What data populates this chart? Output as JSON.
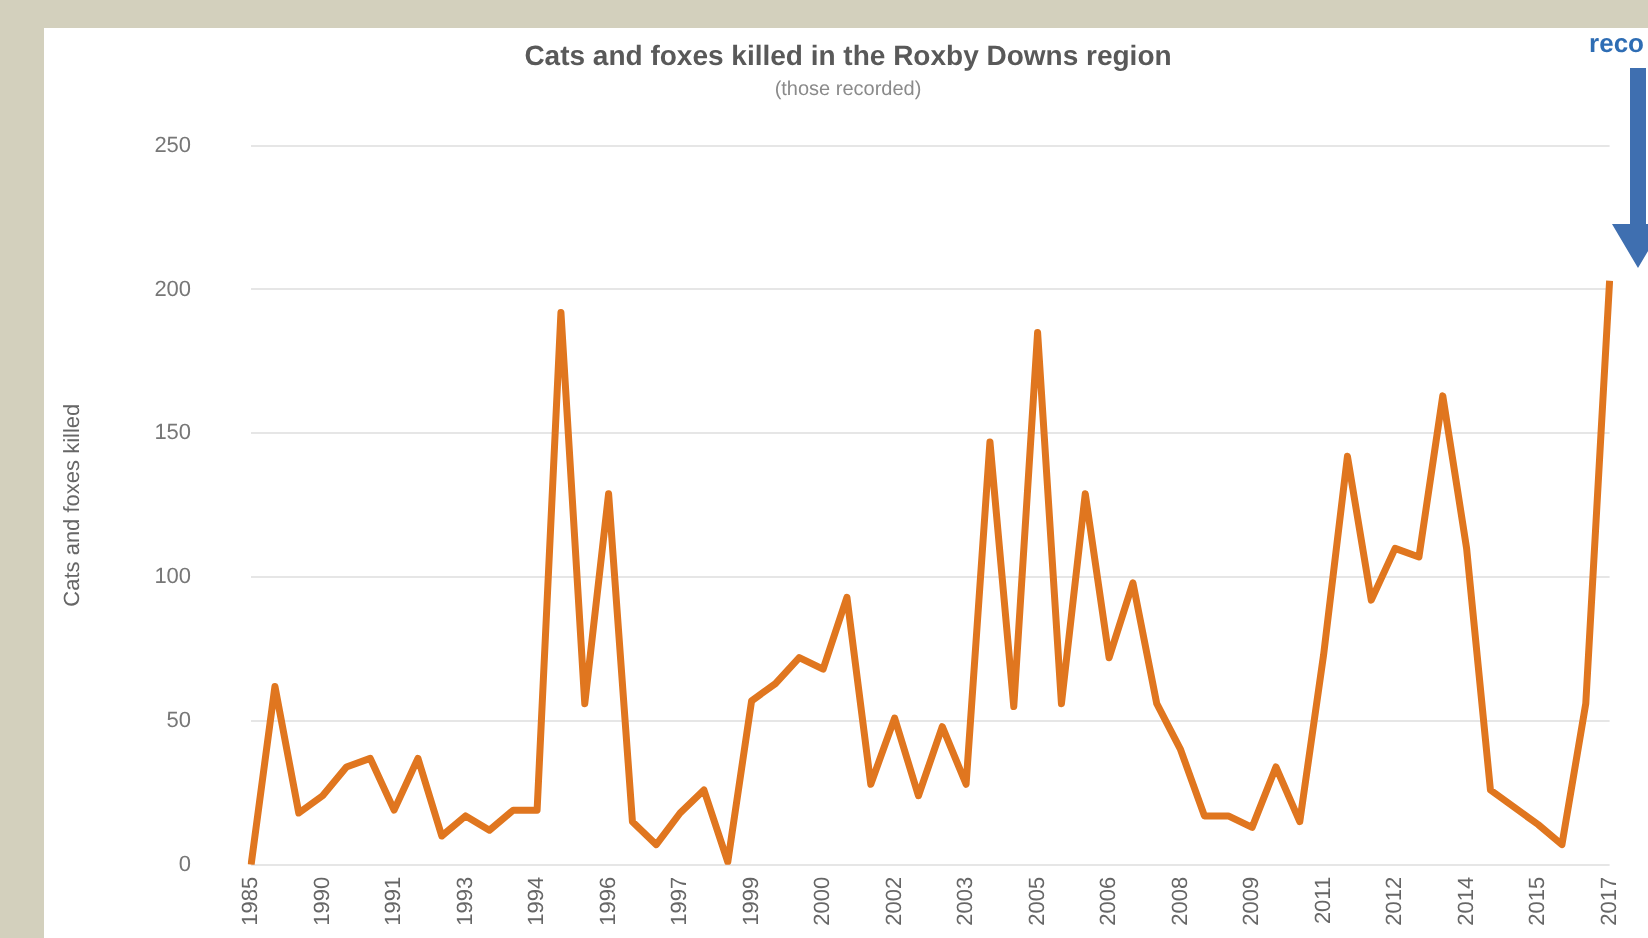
{
  "chart_data": {
    "type": "line",
    "title": "Cats and foxes killed in the Roxby Downs region",
    "subtitle": "(those recorded)",
    "ylabel": "Cats and foxes killed",
    "annotations": [
      "reco"
    ],
    "categories": [
      "1985",
      null,
      null,
      "1990",
      null,
      null,
      "1991",
      null,
      null,
      "1993",
      null,
      null,
      "1994",
      null,
      null,
      "1996",
      null,
      null,
      "1997",
      null,
      null,
      "1999",
      null,
      null,
      "2000",
      null,
      null,
      "2002",
      null,
      null,
      "2003",
      null,
      null,
      "2005",
      null,
      null,
      "2006",
      null,
      null,
      "2008",
      null,
      null,
      "2009",
      null,
      null,
      "2011",
      null,
      null,
      "2012",
      null,
      null,
      "2014",
      null,
      null,
      "2015",
      null,
      null,
      "2017"
    ],
    "series": [
      {
        "color": "#e0761f",
        "values": [
          0,
          62,
          18,
          24,
          34,
          37,
          19,
          37,
          10,
          17,
          12,
          19,
          19,
          192,
          56,
          129,
          15,
          7,
          18,
          26,
          1,
          57,
          63,
          72,
          68,
          93,
          28,
          51,
          24,
          48,
          28,
          147,
          55,
          185,
          56,
          129,
          72,
          98,
          56,
          40,
          17,
          17,
          13,
          34,
          15,
          73,
          142,
          92,
          110,
          107,
          163,
          110,
          26,
          20,
          14,
          7,
          56,
          203
        ]
      }
    ],
    "ylim": [
      0,
      250
    ],
    "yticks": [
      0,
      50,
      100,
      150,
      200,
      250
    ],
    "grid": "y",
    "legend": false,
    "marker": "none",
    "line_style": "solid"
  }
}
